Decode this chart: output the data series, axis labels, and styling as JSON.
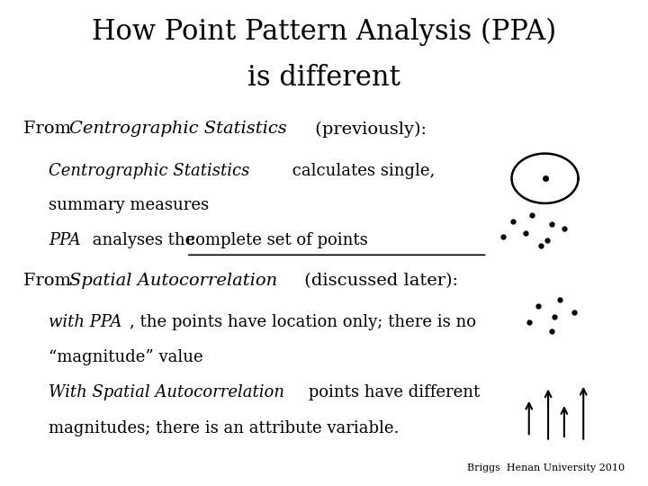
{
  "title_line1": "How Point Pattern Analysis (PPA)",
  "title_line2": "is different",
  "background_color": "#ffffff",
  "text_color": "#000000",
  "font_family": "DejaVu Serif",
  "footer": "Briggs  Henan University 2010"
}
